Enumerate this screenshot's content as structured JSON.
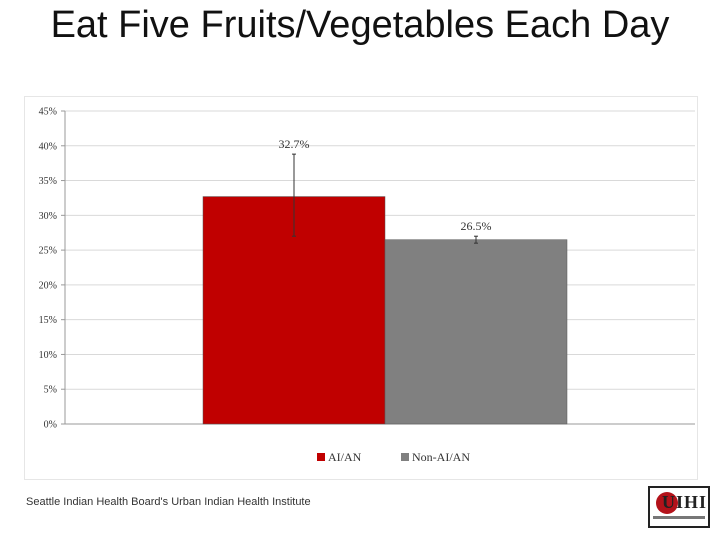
{
  "slide": {
    "title": "Eat Five Fruits/Vegetables Each Day",
    "footer": "Seattle Indian Health Board's Urban Indian Health Institute",
    "logo_text": "UIHI"
  },
  "colors": {
    "ai_an": "#c00000",
    "non_ai_an": "#808080",
    "grid": "#d9d9d9"
  },
  "chart_data": {
    "type": "bar",
    "title": "",
    "xlabel": "",
    "ylabel": "",
    "ylim": [
      0,
      45
    ],
    "yticks": [
      0,
      5,
      10,
      15,
      20,
      25,
      30,
      35,
      40,
      45
    ],
    "ytick_labels": [
      "0%",
      "5%",
      "10%",
      "15%",
      "20%",
      "25%",
      "30%",
      "35%",
      "40%",
      "45%"
    ],
    "grid": true,
    "legend_position": "bottom",
    "categories": [
      ""
    ],
    "series": [
      {
        "name": "AI/AN",
        "values": [
          32.7
        ],
        "label": "32.7%",
        "error": [
          27.0,
          38.8
        ],
        "color": "#c00000"
      },
      {
        "name": "Non-AI/AN",
        "values": [
          26.5
        ],
        "label": "26.5%",
        "error": [
          26.0,
          27.0
        ],
        "color": "#808080"
      }
    ]
  }
}
